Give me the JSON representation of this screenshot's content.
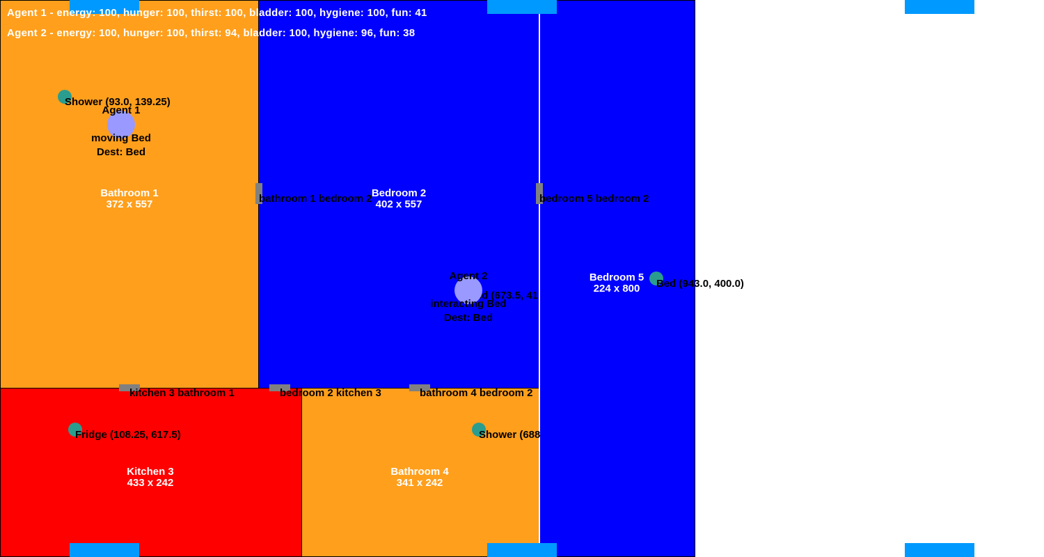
{
  "colors": {
    "bathroom": "#ff9f1c",
    "bedroom": "#0000ff",
    "kitchen": "#ff0000",
    "window": "#0099ff",
    "door": "#808080",
    "object": "#2a9d8f",
    "agent": "#9999ff"
  },
  "stats": {
    "agent1": "Agent 1 - energy: 100, hunger: 100, thirst: 100, bladder: 100, hygiene: 100, fun: 41",
    "agent2": "Agent 2 - energy: 100, hunger: 100, thirst: 94, bladder: 100, hygiene: 96, fun: 38"
  },
  "rooms": {
    "bathroom1": {
      "name": "Bathroom 1",
      "size": "372 x 557"
    },
    "bedroom2": {
      "name": "Bedroom 2",
      "size": "402 x 557"
    },
    "bedroom5": {
      "name": "Bedroom 5",
      "size": "224 x 800"
    },
    "kitchen3": {
      "name": "Kitchen 3",
      "size": "433 x 242"
    },
    "bathroom4": {
      "name": "Bathroom 4",
      "size": "341 x 242"
    }
  },
  "doors": {
    "bathroom1_bedroom2": "bathroom 1 bedroom 2",
    "bedroom5_bedroom2": "bedroom 5 bedroom 2",
    "kitchen3_bathroom1": "kitchen 3 bathroom 1",
    "bedroom2_kitchen3": "bedroom 2 kitchen 3",
    "bathroom4_bedroom2": "bathroom 4 bedroom 2"
  },
  "objects": {
    "bathroom1_label": "Shower (93.0, 139.25)",
    "bedroom5_bed": "Bed (943.0, 400.0)",
    "bedroom2_bed": "Bed (673.5, 417.5)",
    "kitchen3_label": "Fridge (108.25, 617.5)",
    "bathroom4_label": "Shower (688"
  },
  "agents": {
    "agent1": {
      "name": "Agent 1",
      "status": "moving Bed",
      "dest": "Dest: Bed"
    },
    "agent2": {
      "name": "Agent 2",
      "status": "interacting Bed",
      "dest": "Dest: Bed"
    }
  }
}
